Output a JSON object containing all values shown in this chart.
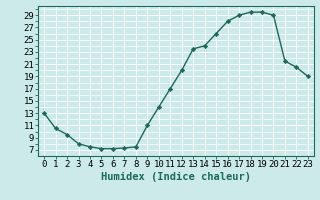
{
  "x": [
    0,
    1,
    2,
    3,
    4,
    5,
    6,
    7,
    8,
    9,
    10,
    11,
    12,
    13,
    14,
    15,
    16,
    17,
    18,
    19,
    20,
    21,
    22,
    23
  ],
  "y": [
    13,
    10.5,
    9.5,
    8,
    7.5,
    7.2,
    7.2,
    7.3,
    7.5,
    11,
    14,
    17,
    20,
    23.5,
    24,
    26,
    28,
    29,
    29.5,
    29.5,
    29,
    21.5,
    20.5,
    19
  ],
  "line_color": "#1a6b5a",
  "marker": "D",
  "marker_size": 2.2,
  "bg_color": "#cceaea",
  "grid_color": "#ffffff",
  "xlabel": "Humidex (Indice chaleur)",
  "xlabel_fontsize": 7.5,
  "yticks": [
    7,
    9,
    11,
    13,
    15,
    17,
    19,
    21,
    23,
    25,
    27,
    29
  ],
  "ylim": [
    6.0,
    30.5
  ],
  "xlim": [
    -0.5,
    23.5
  ],
  "tick_fontsize": 6.5,
  "linewidth": 1.0
}
